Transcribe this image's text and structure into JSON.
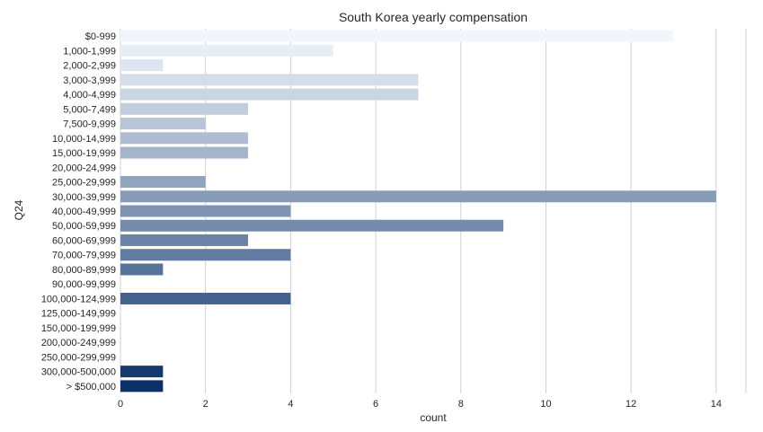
{
  "chart_data": {
    "type": "bar",
    "orientation": "horizontal",
    "title": "South Korea yearly compensation",
    "xlabel": "count",
    "ylabel": "Q24",
    "categories": [
      "$0-999",
      "1,000-1,999",
      "2,000-2,999",
      "3,000-3,999",
      "4,000-4,999",
      "5,000-7,499",
      "7,500-9,999",
      "10,000-14,999",
      "15,000-19,999",
      "20,000-24,999",
      "25,000-29,999",
      "30,000-39,999",
      "40,000-49,999",
      "50,000-59,999",
      "60,000-69,999",
      "70,000-79,999",
      "80,000-89,999",
      "90,000-99,999",
      "100,000-124,999",
      "125,000-149,999",
      "150,000-199,999",
      "200,000-249,999",
      "250,000-299,999",
      "300,000-500,000",
      "> $500,000"
    ],
    "values": [
      13,
      5,
      1,
      7,
      7,
      3,
      2,
      3,
      3,
      0,
      2,
      14,
      4,
      9,
      3,
      4,
      1,
      0,
      4,
      0,
      0,
      0,
      0,
      1,
      1
    ],
    "xlim": [
      0,
      14.7
    ],
    "xticks": [
      0,
      2,
      4,
      6,
      8,
      10,
      12,
      14
    ],
    "grid": "vertical",
    "palette": {
      "start": "#f0f6fc",
      "end": "#0c3168"
    },
    "colors": {
      "grid": "#d0d0d0",
      "text": "#262626"
    }
  }
}
